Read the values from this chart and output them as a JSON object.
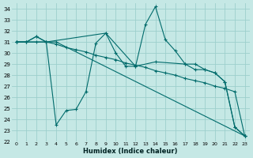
{
  "xlabel": "Humidex (Indice chaleur)",
  "background_color": "#c5e8e5",
  "grid_color": "#9dcfcc",
  "line_color": "#006b6b",
  "xlim": [
    -0.5,
    23.5
  ],
  "ylim": [
    22,
    34.5
  ],
  "yticks": [
    22,
    23,
    24,
    25,
    26,
    27,
    28,
    29,
    30,
    31,
    32,
    33,
    34
  ],
  "xticks": [
    0,
    1,
    2,
    3,
    4,
    5,
    6,
    7,
    8,
    9,
    10,
    11,
    12,
    13,
    14,
    15,
    16,
    17,
    18,
    19,
    20,
    21,
    22,
    23
  ],
  "series": [
    {
      "x": [
        0,
        1,
        2,
        3,
        4,
        5,
        6,
        7,
        8,
        9,
        10,
        11,
        12,
        13,
        14,
        15,
        16,
        17,
        18,
        19,
        20,
        21,
        22,
        23
      ],
      "y": [
        31.0,
        31.0,
        31.5,
        31.0,
        23.5,
        24.8,
        24.9,
        26.5,
        30.9,
        31.8,
        30.0,
        28.8,
        28.8,
        32.6,
        34.2,
        31.2,
        30.2,
        29.0,
        29.0,
        28.5,
        28.2,
        27.4,
        23.3,
        22.5
      ]
    },
    {
      "x": [
        0,
        1,
        2,
        3,
        4,
        5,
        6,
        7,
        8,
        9,
        10,
        11,
        12,
        13,
        14,
        15,
        16,
        17,
        18,
        19,
        20,
        21,
        22,
        23
      ],
      "y": [
        31.0,
        31.0,
        31.0,
        31.0,
        30.8,
        30.5,
        30.3,
        30.1,
        29.8,
        29.6,
        29.4,
        29.1,
        28.9,
        28.7,
        28.4,
        28.2,
        28.0,
        27.7,
        27.5,
        27.3,
        27.0,
        26.8,
        26.5,
        22.5
      ]
    },
    {
      "x": [
        0,
        1,
        2,
        3,
        4,
        23
      ],
      "y": [
        31.0,
        31.0,
        31.5,
        31.0,
        31.0,
        22.5
      ]
    },
    {
      "x": [
        0,
        3,
        9,
        12,
        14,
        17,
        18,
        19,
        20,
        21,
        22,
        23
      ],
      "y": [
        31.0,
        31.0,
        31.8,
        28.8,
        29.2,
        29.0,
        28.5,
        28.5,
        28.2,
        27.4,
        23.3,
        22.5
      ]
    }
  ]
}
